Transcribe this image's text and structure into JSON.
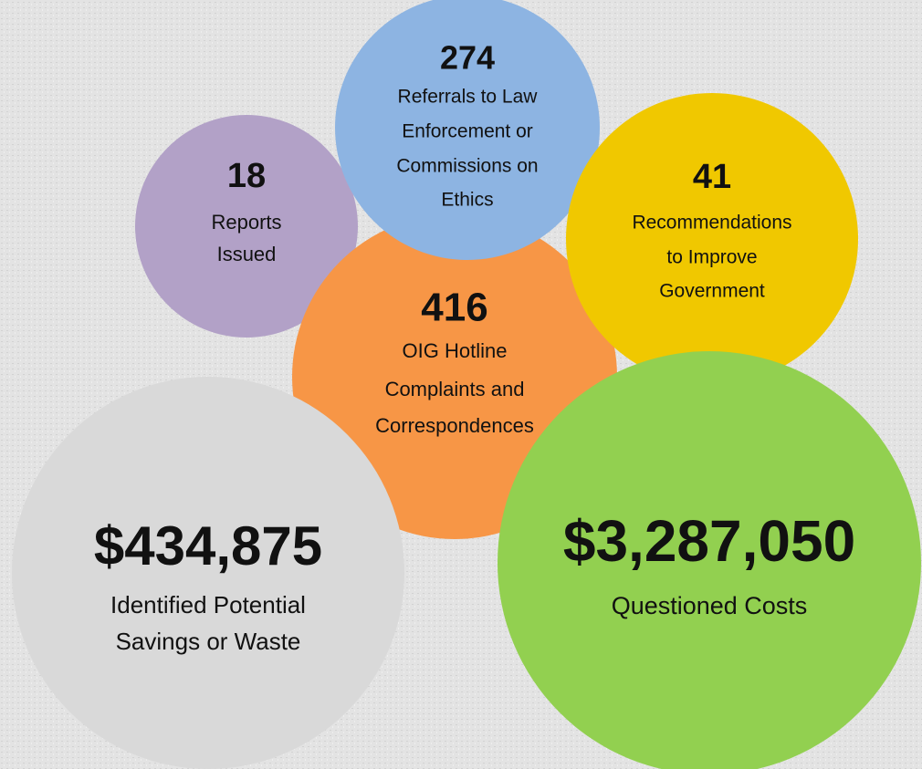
{
  "bubbles": [
    {
      "value": "18",
      "lines": [
        "Reports",
        "Issued"
      ],
      "color": "#b2a1c7"
    },
    {
      "value": "416",
      "lines": [
        "OIG Hotline",
        "Complaints and",
        "Correspondences"
      ],
      "color": "#f79646"
    },
    {
      "value": "274",
      "lines": [
        "Referrals to Law",
        "Enforcement or",
        "Commissions on",
        "Ethics"
      ],
      "color": "#8db4e2"
    },
    {
      "value": "41",
      "lines": [
        "Recommendations",
        "to Improve",
        "Government"
      ],
      "color": "#f0c800"
    },
    {
      "value": "$434,875",
      "lines": [
        "Identified Potential",
        "Savings or Waste"
      ],
      "color": "#d9d9d9"
    },
    {
      "value": "$3,287,050",
      "lines": [
        "Questioned Costs"
      ],
      "color": "#92d050"
    }
  ]
}
